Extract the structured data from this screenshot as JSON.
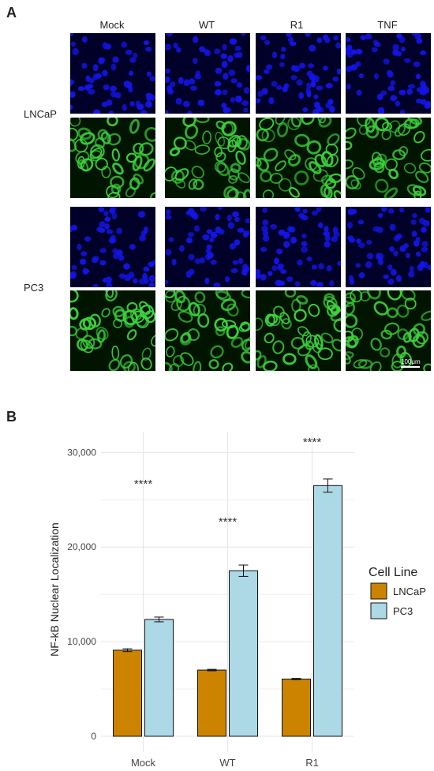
{
  "panel_a": {
    "letter": "A",
    "columns": [
      "Mock",
      "WT",
      "R1",
      "TNF"
    ],
    "rows": [
      "LNCaP",
      "PC3"
    ],
    "scale_bar": "100μm",
    "colors": {
      "nucleus": "#1414e6",
      "nucleus_bg": "#000028",
      "protein": "#3cd23c",
      "protein_bg": "#001400"
    }
  },
  "panel_b": {
    "letter": "B",
    "legend_title": "Cell Line"
  },
  "chart_data": {
    "type": "bar",
    "categories": [
      "Mock",
      "WT",
      "R1"
    ],
    "series": [
      {
        "name": "LNCaP",
        "values": [
          9100,
          7000,
          6050
        ],
        "errors": [
          150,
          80,
          70
        ],
        "color": "#cc8400"
      },
      {
        "name": "PC3",
        "values": [
          12350,
          17500,
          26500
        ],
        "errors": [
          250,
          600,
          700
        ],
        "color": "#add8e6"
      }
    ],
    "significance": [
      "****",
      "****",
      "****"
    ],
    "ylabel": "NF-kB Nuclear Localization",
    "ylim": [
      0,
      30000
    ],
    "yticks": [
      0,
      10000,
      20000,
      30000
    ],
    "ytick_labels": [
      "0",
      "10,000",
      "20,000",
      "30,000"
    ],
    "grid": true,
    "legend_position": "right"
  }
}
